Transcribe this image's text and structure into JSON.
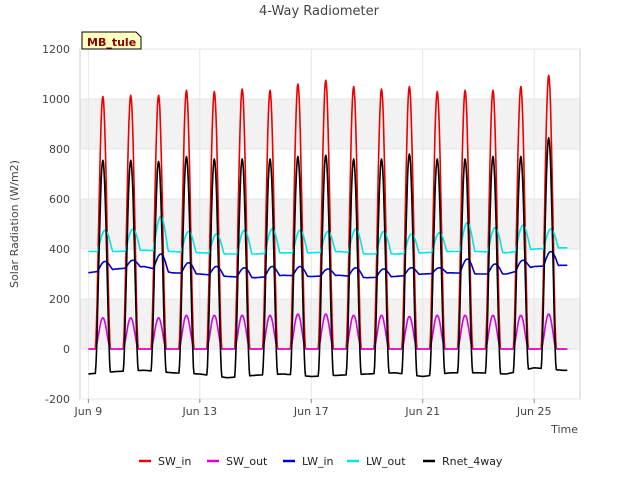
{
  "chart_data": {
    "type": "line",
    "title": "4-Way Radiometer",
    "xlabel": "Time",
    "ylabel": "Solar Radiation (W/m2)",
    "ylim": [
      -200,
      1200
    ],
    "y_ticks": [
      -200,
      0,
      200,
      400,
      600,
      800,
      1000,
      1200
    ],
    "x_range_days": [
      "2024-06-09",
      "2024-06-27"
    ],
    "x_ticks": [
      {
        "date": "2024-06-09",
        "label": "Jun 9"
      },
      {
        "date": "2024-06-13",
        "label": "Jun 13"
      },
      {
        "date": "2024-06-17",
        "label": "Jun 17"
      },
      {
        "date": "2024-06-21",
        "label": "Jun 21"
      },
      {
        "date": "2024-06-25",
        "label": "Jun 25"
      }
    ],
    "grid": true,
    "legend_position": "bottom",
    "badge": "MB_tule",
    "days": [
      "Jun 9",
      "Jun 10",
      "Jun 11",
      "Jun 12",
      "Jun 13",
      "Jun 14",
      "Jun 15",
      "Jun 16",
      "Jun 17",
      "Jun 18",
      "Jun 19",
      "Jun 20",
      "Jun 21",
      "Jun 22",
      "Jun 23",
      "Jun 24",
      "Jun 25",
      "Jun 26"
    ],
    "series": [
      {
        "name": "SW_in",
        "color": "#ee0000",
        "daily_min": [
          0,
          0,
          0,
          0,
          0,
          0,
          0,
          0,
          0,
          0,
          0,
          0,
          0,
          0,
          0,
          0,
          0,
          0
        ],
        "daily_peak": [
          1010,
          1015,
          1015,
          1035,
          1030,
          1040,
          1035,
          1060,
          1075,
          1050,
          1040,
          1050,
          1030,
          1035,
          1035,
          1050,
          1095,
          null
        ]
      },
      {
        "name": "SW_out",
        "color": "#dd00dd",
        "daily_min": [
          0,
          0,
          0,
          0,
          0,
          0,
          0,
          0,
          0,
          0,
          0,
          0,
          0,
          0,
          0,
          0,
          0,
          0
        ],
        "daily_peak": [
          125,
          125,
          125,
          135,
          135,
          135,
          135,
          140,
          140,
          135,
          135,
          130,
          135,
          135,
          135,
          135,
          140,
          null
        ]
      },
      {
        "name": "LW_in",
        "color": "#0000cc",
        "daily_min": [
          305,
          320,
          330,
          305,
          300,
          290,
          285,
          295,
          290,
          295,
          285,
          290,
          300,
          305,
          300,
          300,
          330,
          335
        ],
        "daily_peak": [
          350,
          355,
          380,
          345,
          330,
          325,
          330,
          330,
          320,
          325,
          320,
          325,
          325,
          360,
          340,
          355,
          390,
          null
        ]
      },
      {
        "name": "LW_out",
        "color": "#00e5e5",
        "daily_min": [
          390,
          390,
          395,
          390,
          385,
          380,
          380,
          385,
          385,
          390,
          380,
          380,
          385,
          390,
          390,
          385,
          400,
          405
        ],
        "daily_peak": [
          475,
          480,
          530,
          470,
          460,
          475,
          480,
          475,
          470,
          480,
          470,
          460,
          465,
          505,
          485,
          495,
          480,
          null
        ]
      },
      {
        "name": "Rnet_4way",
        "color": "#000000",
        "daily_min": [
          -100,
          -90,
          -85,
          -95,
          -100,
          -115,
          -105,
          -100,
          -110,
          -105,
          -100,
          -95,
          -110,
          -95,
          -95,
          -100,
          -75,
          -85
        ],
        "daily_peak": [
          755,
          755,
          750,
          770,
          760,
          760,
          760,
          770,
          775,
          760,
          760,
          780,
          760,
          760,
          770,
          770,
          845,
          null
        ]
      }
    ]
  }
}
